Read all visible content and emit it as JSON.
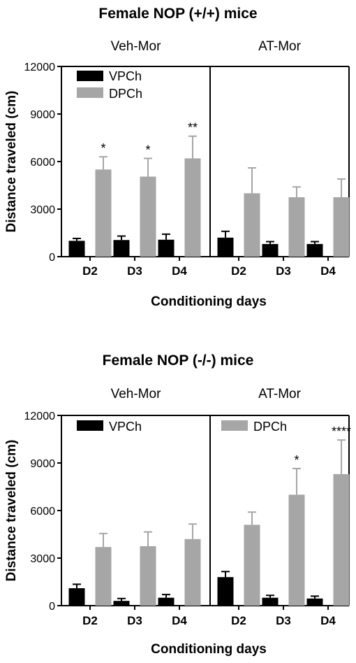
{
  "chart_data": [
    {
      "type": "bar",
      "title": "Female NOP (+/+) mice",
      "xlabel": "Conditioning days",
      "ylabel": "Distance traveled (cm)",
      "ylim": [
        0,
        12000
      ],
      "yticks": [
        "0",
        "3000",
        "6000",
        "9000",
        "12000"
      ],
      "legend_position": "top-left",
      "colors": {
        "VPCh": "#000000",
        "DPCh": "#a6a6a6"
      },
      "panels": [
        {
          "name": "Veh-Mor",
          "categories": [
            "D2",
            "D3",
            "D4"
          ],
          "series": [
            {
              "name": "VPCh",
              "values": [
                1000,
                1050,
                1070
              ],
              "errors": [
                150,
                250,
                350
              ]
            },
            {
              "name": "DPCh",
              "values": [
                5500,
                5050,
                6200
              ],
              "errors": [
                800,
                1150,
                1400
              ]
            }
          ],
          "significance": [
            {
              "category": "D2",
              "label": "*"
            },
            {
              "category": "D3",
              "label": "*"
            },
            {
              "category": "D4",
              "label": "**"
            }
          ]
        },
        {
          "name": "AT-Mor",
          "categories": [
            "D2",
            "D3",
            "D4"
          ],
          "series": [
            {
              "name": "VPCh",
              "values": [
                1200,
                800,
                800
              ],
              "errors": [
                400,
                150,
                150
              ]
            },
            {
              "name": "DPCh",
              "values": [
                4000,
                3750,
                3750
              ],
              "errors": [
                1600,
                650,
                1150
              ]
            }
          ],
          "significance": []
        }
      ]
    },
    {
      "type": "bar",
      "title": "Female NOP (-/-) mice",
      "xlabel": "Conditioning days",
      "ylabel": "Distance traveled (cm)",
      "ylim": [
        0,
        12000
      ],
      "yticks": [
        "0",
        "3000",
        "6000",
        "9000",
        "12000"
      ],
      "legend_position": "top",
      "colors": {
        "VPCh": "#000000",
        "DPCh": "#a6a6a6"
      },
      "panels": [
        {
          "name": "Veh-Mor",
          "categories": [
            "D2",
            "D3",
            "D4"
          ],
          "series": [
            {
              "name": "VPCh",
              "values": [
                1100,
                300,
                500
              ],
              "errors": [
                250,
                150,
                200
              ]
            },
            {
              "name": "DPCh",
              "values": [
                3700,
                3750,
                4200
              ],
              "errors": [
                850,
                900,
                950
              ]
            }
          ],
          "significance": []
        },
        {
          "name": "AT-Mor",
          "categories": [
            "D2",
            "D3",
            "D4"
          ],
          "series": [
            {
              "name": "VPCh",
              "values": [
                1800,
                500,
                450
              ],
              "errors": [
                350,
                150,
                150
              ]
            },
            {
              "name": "DPCh",
              "values": [
                5100,
                7000,
                8300
              ],
              "errors": [
                800,
                1650,
                2150
              ]
            }
          ],
          "significance": [
            {
              "category": "D3",
              "label": "*"
            },
            {
              "category": "D4",
              "label": "****"
            }
          ]
        }
      ]
    }
  ]
}
